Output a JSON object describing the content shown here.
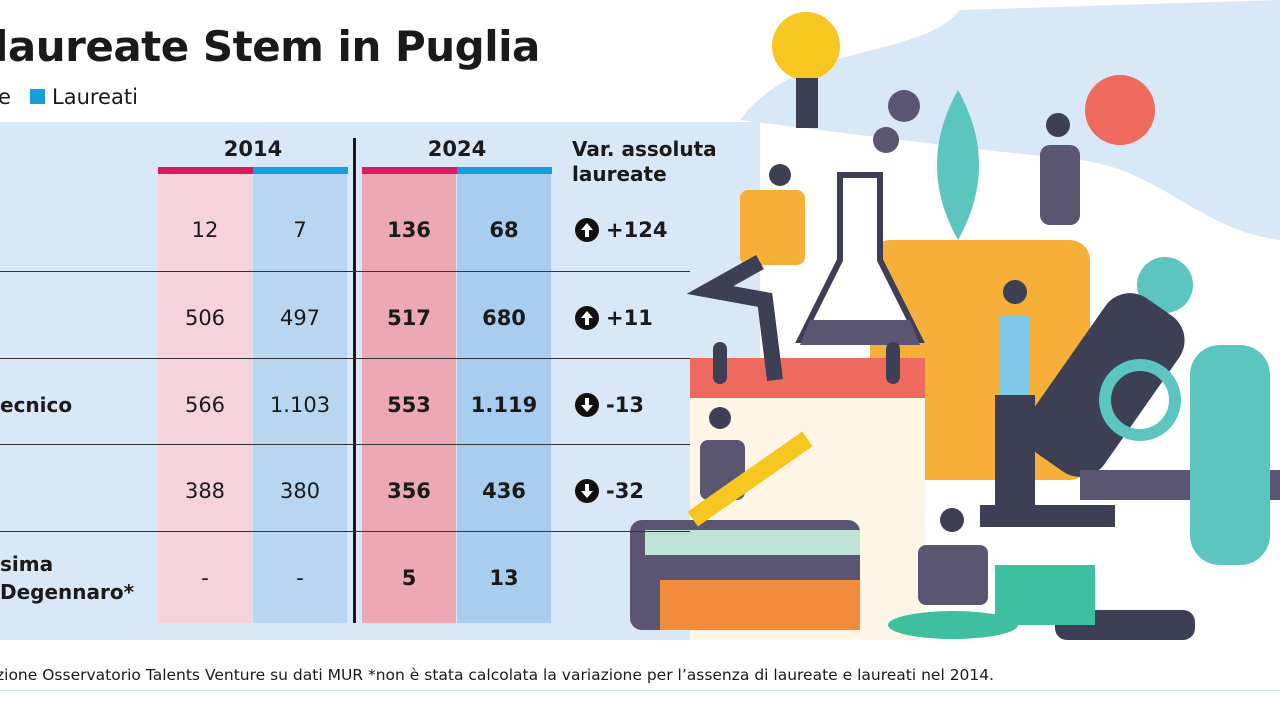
{
  "header": {
    "title": "laureate Stem in Puglia",
    "legend": [
      "e",
      "Laureati"
    ]
  },
  "table": {
    "years": [
      "2014",
      "2024"
    ],
    "var_header": [
      "Var. assoluta",
      "laureate"
    ],
    "rows": [
      {
        "cells": [
          "12",
          "7",
          "136",
          "68"
        ],
        "var": "+124"
      },
      {
        "cells": [
          "506",
          "497",
          "517",
          "680"
        ],
        "var": "+11"
      },
      {
        "label": [
          "ecnico"
        ],
        "cells": [
          "566",
          "1.103",
          "553",
          "1.119"
        ],
        "var": "-13"
      },
      {
        "cells": [
          "388",
          "380",
          "356",
          "436"
        ],
        "var": "-32"
      },
      {
        "label": [
          "sima",
          "Degennaro*"
        ],
        "cells": [
          "-",
          "-",
          "5",
          "13"
        ]
      }
    ]
  },
  "footer": "zione Osservatorio Talents Venture su dati MUR  *non è stata calcolata la variazione per l’assenza di laureate e laureati nel 2014."
}
